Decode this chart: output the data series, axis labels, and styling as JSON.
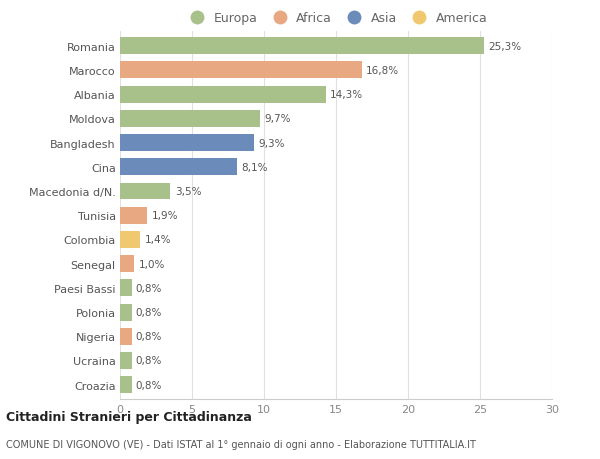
{
  "countries": [
    "Romania",
    "Marocco",
    "Albania",
    "Moldova",
    "Bangladesh",
    "Cina",
    "Macedonia d/N.",
    "Tunisia",
    "Colombia",
    "Senegal",
    "Paesi Bassi",
    "Polonia",
    "Nigeria",
    "Ucraina",
    "Croazia"
  ],
  "values": [
    25.3,
    16.8,
    14.3,
    9.7,
    9.3,
    8.1,
    3.5,
    1.9,
    1.4,
    1.0,
    0.8,
    0.8,
    0.8,
    0.8,
    0.8
  ],
  "labels": [
    "25,3%",
    "16,8%",
    "14,3%",
    "9,7%",
    "9,3%",
    "8,1%",
    "3,5%",
    "1,9%",
    "1,4%",
    "1,0%",
    "0,8%",
    "0,8%",
    "0,8%",
    "0,8%",
    "0,8%"
  ],
  "colors": [
    "#a8c08a",
    "#e8a882",
    "#a8c08a",
    "#a8c08a",
    "#6b8cba",
    "#6b8cba",
    "#a8c08a",
    "#e8a882",
    "#f0c870",
    "#e8a882",
    "#a8c08a",
    "#a8c08a",
    "#e8a882",
    "#a8c08a",
    "#a8c08a"
  ],
  "legend": [
    {
      "label": "Europa",
      "color": "#a8c08a"
    },
    {
      "label": "Africa",
      "color": "#e8a882"
    },
    {
      "label": "Asia",
      "color": "#6b8cba"
    },
    {
      "label": "America",
      "color": "#f0c870"
    }
  ],
  "title": "Cittadini Stranieri per Cittadinanza",
  "subtitle": "COMUNE DI VIGONOVO (VE) - Dati ISTAT al 1° gennaio di ogni anno - Elaborazione TUTTITALIA.IT",
  "xlim": [
    0,
    30
  ],
  "xticks": [
    0,
    5,
    10,
    15,
    20,
    25,
    30
  ],
  "background_color": "#ffffff",
  "grid_color": "#e0e0e0"
}
